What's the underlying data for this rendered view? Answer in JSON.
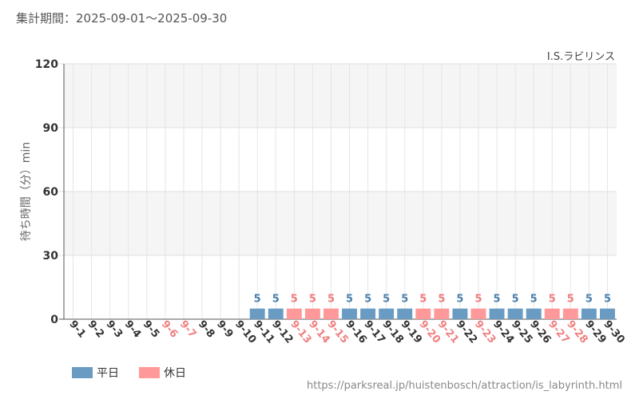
{
  "header": {
    "period_label": "集計期間：2025-09-01～2025-09-30"
  },
  "footer": {
    "source_url": "https://parksreal.jp/huistenbosch/attraction/is_labyrinth.html"
  },
  "colors": {
    "weekday": "#6a9bc3",
    "holiday": "#ff9999",
    "weekday_text": "#4a7fad",
    "holiday_text": "#f27a7a",
    "weekday_tick": "#333333",
    "holiday_tick": "#f08080"
  },
  "chart_data": {
    "type": "bar",
    "title": "I.S.ラビリンス",
    "ylabel": "待ち時間（分）min",
    "xlabel": "",
    "ylim": [
      0,
      120
    ],
    "yticks": [
      0,
      30,
      60,
      90,
      120
    ],
    "grid": true,
    "legend_position": "bottom-left",
    "categories": [
      "9-1",
      "9-2",
      "9-3",
      "9-4",
      "9-5",
      "9-6",
      "9-7",
      "9-8",
      "9-9",
      "9-10",
      "9-11",
      "9-12",
      "9-13",
      "9-14",
      "9-15",
      "9-16",
      "9-17",
      "9-18",
      "9-19",
      "9-20",
      "9-21",
      "9-22",
      "9-23",
      "9-24",
      "9-25",
      "9-26",
      "9-27",
      "9-28",
      "9-29",
      "9-30"
    ],
    "day_type": [
      "weekday",
      "weekday",
      "weekday",
      "weekday",
      "weekday",
      "holiday",
      "holiday",
      "weekday",
      "weekday",
      "weekday",
      "weekday",
      "weekday",
      "holiday",
      "holiday",
      "holiday",
      "weekday",
      "weekday",
      "weekday",
      "weekday",
      "holiday",
      "holiday",
      "weekday",
      "holiday",
      "weekday",
      "weekday",
      "weekday",
      "holiday",
      "holiday",
      "weekday",
      "weekday"
    ],
    "values": [
      null,
      null,
      null,
      null,
      null,
      null,
      null,
      null,
      null,
      null,
      5,
      5,
      5,
      5,
      5,
      5,
      5,
      5,
      5,
      5,
      5,
      5,
      5,
      5,
      5,
      5,
      5,
      5,
      5,
      5
    ],
    "legend": [
      {
        "key": "weekday",
        "label": "平日"
      },
      {
        "key": "holiday",
        "label": "休日"
      }
    ]
  }
}
